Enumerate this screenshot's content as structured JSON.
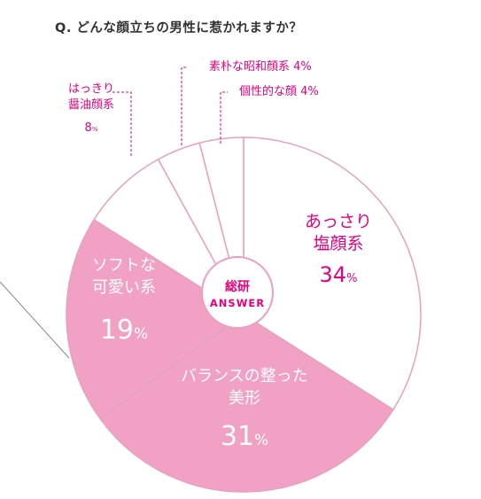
{
  "question": "Q. どんな顔立ちの男性に惹かれますか？",
  "center_label": {
    "line1": "総研",
    "line2": "ANSWER"
  },
  "colors": {
    "accent": "#e5007f",
    "pink_fill": "#f0a1c4",
    "outline": "#e8a0c0",
    "center": "#ffffff"
  },
  "chart_data": {
    "type": "pie",
    "unit": "%",
    "slices": [
      {
        "name_lines": [
          "あっさり",
          "塩顔系"
        ],
        "value": 34,
        "value_text": "34",
        "fill": "#ffffff"
      },
      {
        "name_lines": [
          "バランスの整った",
          "美形"
        ],
        "value": 31,
        "value_text": "31",
        "fill": "#f0a1c4"
      },
      {
        "name_lines": [
          "ソフトな",
          "可愛い系"
        ],
        "value": 19,
        "value_text": "19",
        "fill": "#f0a1c4"
      },
      {
        "name_lines": [
          "はっきり",
          "醤油顔系"
        ],
        "value": 8,
        "value_text": "8",
        "fill": "#ffffff"
      },
      {
        "name_lines": [
          "素朴な昭和顔系"
        ],
        "value": 4,
        "value_text": "4",
        "fill": "#ffffff"
      },
      {
        "name_lines": [
          "個性的な顔"
        ],
        "value": 4,
        "value_text": "4",
        "fill": "#ffffff"
      }
    ]
  }
}
